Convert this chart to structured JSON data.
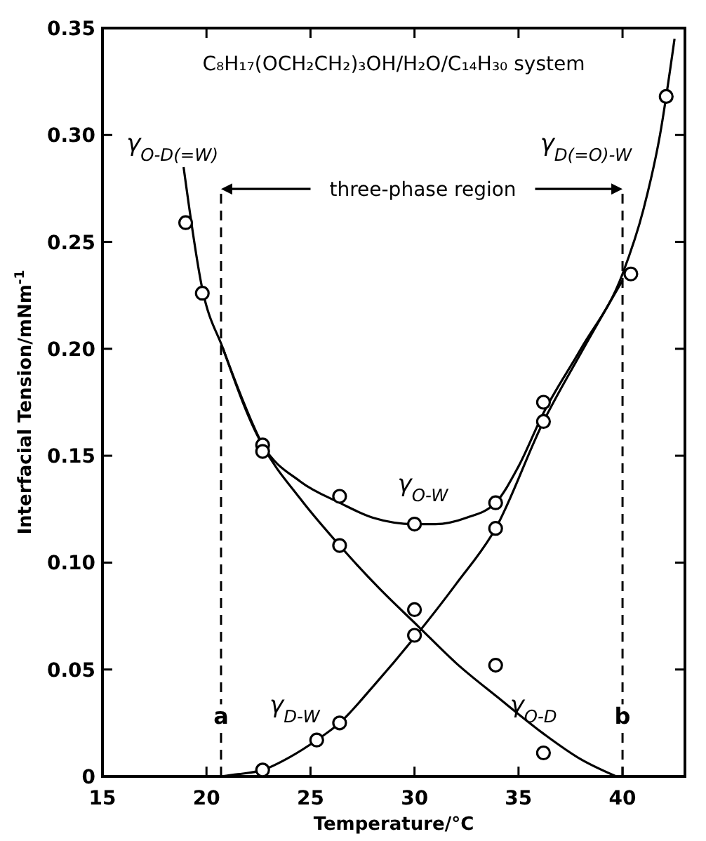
{
  "chart_data": {
    "type": "line",
    "title": "C₈H₁₇(OCH₂CH₂)₃OH/H₂O/C₁₄H₃₀ system",
    "xlabel": "Temperature/°C",
    "ylabel": "Interfacial Tension/mNm$^{-1}$",
    "xlim": [
      15,
      43
    ],
    "ylim": [
      0,
      0.35
    ],
    "xticks": [
      15,
      20,
      25,
      30,
      35,
      40
    ],
    "yticks": [
      {
        "value": 0,
        "label": "0"
      },
      {
        "value": 0.05,
        "label": "0.05"
      },
      {
        "value": 0.1,
        "label": "0.10"
      },
      {
        "value": 0.15,
        "label": "0.15"
      },
      {
        "value": 0.2,
        "label": "0.20"
      },
      {
        "value": 0.25,
        "label": "0.25"
      },
      {
        "value": 0.3,
        "label": "0.30"
      },
      {
        "value": 0.35,
        "label": "0.35"
      }
    ],
    "grid": false,
    "series": [
      {
        "color": "#000000",
        "marker": "none",
        "line_style": "solid",
        "x": [
          18.9,
          19.8,
          20.8,
          22.7,
          24.5,
          26.4,
          28.3,
          30.2,
          32,
          34,
          36.2,
          38,
          39.7
        ],
        "values": [
          0.285,
          0.228,
          0.2,
          0.155,
          0.13,
          0.108,
          0.088,
          0.07,
          0.053,
          0.037,
          0.02,
          0.008,
          0
        ]
      },
      {
        "color": "#000000",
        "marker": "none",
        "line_style": "solid",
        "x": [
          20.8,
          22.7,
          24.5,
          26.4,
          28,
          30,
          31,
          32.5,
          33.9,
          35,
          36.2,
          38,
          40,
          41,
          41.8,
          42.5
        ],
        "values": [
          0.2,
          0.155,
          0.138,
          0.128,
          0.121,
          0.118,
          0.118,
          0.121,
          0.128,
          0.145,
          0.17,
          0.2,
          0.235,
          0.265,
          0.3,
          0.345
        ]
      },
      {
        "color": "#000000",
        "marker": "none",
        "line_style": "solid",
        "x": [
          20.7,
          21.5,
          22.7,
          24,
          25.3,
          26.4,
          28,
          30,
          32,
          33.9,
          36.2,
          38,
          40
        ],
        "values": [
          0,
          0.001,
          0.003,
          0.009,
          0.017,
          0.025,
          0.042,
          0.065,
          0.09,
          0.116,
          0.166,
          0.198,
          0.232
        ]
      },
      {
        "type": "scatter",
        "color": "#000000",
        "marker": "circle",
        "x": [
          19,
          19.8,
          22.7,
          22.7,
          26.4,
          26.4,
          30,
          30,
          30,
          33.9,
          33.9,
          33.9,
          36.2,
          36.2,
          36.2,
          40.4,
          42.1,
          22.7,
          25.3,
          26.4
        ],
        "values": [
          0.259,
          0.226,
          0.155,
          0.152,
          0.131,
          0.108,
          0.118,
          0.078,
          0.066,
          0.128,
          0.116,
          0.052,
          0.175,
          0.166,
          0.011,
          0.235,
          0.318,
          0.003,
          0.017,
          0.025
        ]
      }
    ],
    "ref_lines": [
      {
        "axis": "x",
        "value": 20.7,
        "label": "a",
        "line_style": "dashed"
      },
      {
        "axis": "x",
        "value": 40,
        "label": "b",
        "line_style": "dashed"
      }
    ],
    "annotations": [
      "three-phase region",
      "γ$_{O-D(=W)}$",
      "γ$_{D(=O)-W}$",
      "γ$_{O-W}$",
      "γ$_{D-W}$",
      "γ$_{O-D}$"
    ]
  }
}
